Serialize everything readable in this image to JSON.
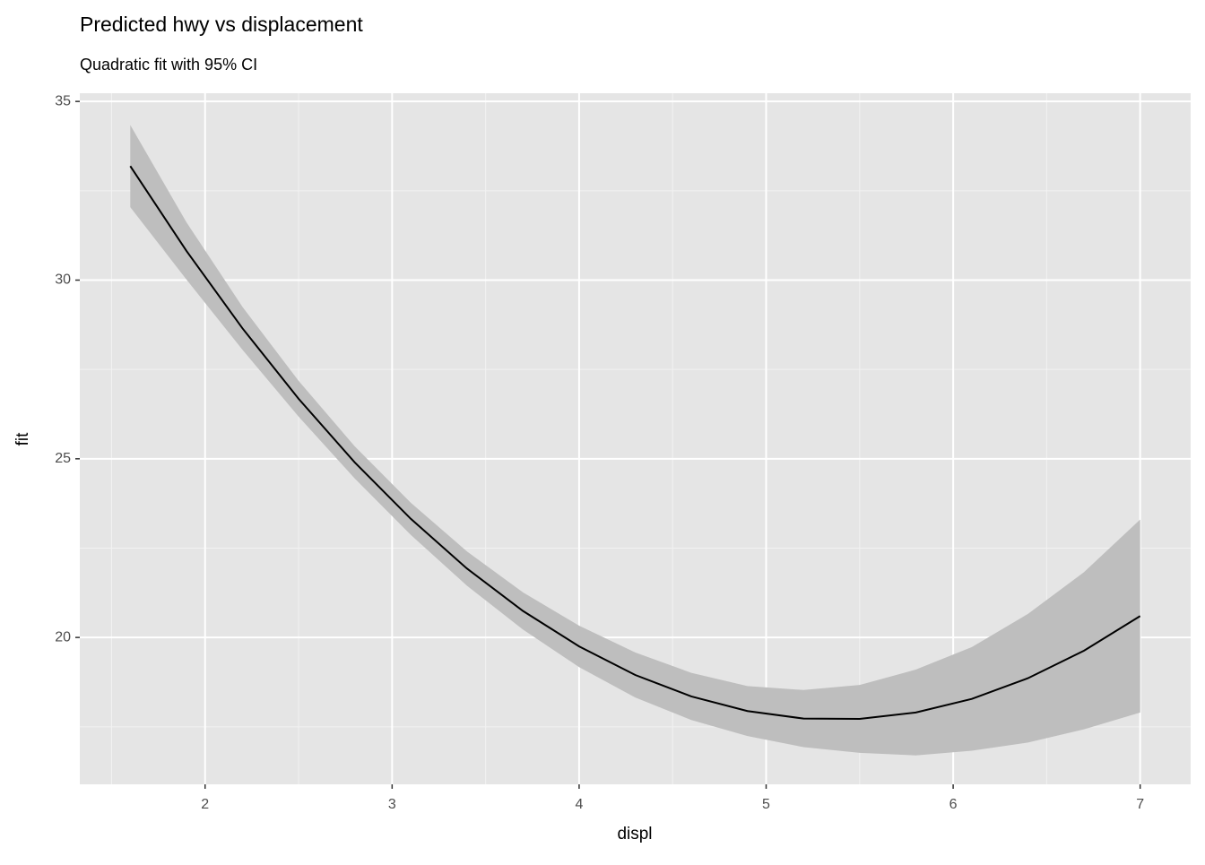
{
  "chart_data": {
    "type": "ribbon-line",
    "title": "Predicted hwy vs displacement",
    "subtitle": "Quadratic fit with 95% CI",
    "x_label": "displ",
    "y_label": "fit",
    "x": [
      1.6,
      1.9,
      2.2,
      2.5,
      2.8,
      3.1,
      3.4,
      3.7,
      4.0,
      4.3,
      4.6,
      4.9,
      5.2,
      5.5,
      5.8,
      6.1,
      6.4,
      6.7,
      7.0
    ],
    "series": [
      {
        "name": "fit",
        "color": "#000000",
        "values": [
          33.19,
          30.82,
          28.65,
          26.68,
          24.9,
          23.32,
          21.93,
          20.74,
          19.75,
          18.95,
          18.35,
          17.94,
          17.73,
          17.72,
          17.9,
          18.28,
          18.86,
          19.63,
          20.6
        ]
      },
      {
        "name": "lower",
        "color": "#bebebe",
        "values": [
          32.04,
          30.02,
          28.05,
          26.18,
          24.45,
          22.87,
          21.45,
          20.22,
          19.17,
          18.32,
          17.69,
          17.24,
          16.93,
          16.77,
          16.7,
          16.83,
          17.06,
          17.43,
          17.9
        ]
      },
      {
        "name": "upper",
        "color": "#bebebe",
        "values": [
          34.34,
          31.62,
          29.25,
          27.18,
          25.35,
          23.77,
          22.41,
          21.26,
          20.33,
          19.58,
          19.01,
          18.64,
          18.53,
          18.67,
          19.1,
          19.73,
          20.66,
          21.83,
          23.3
        ]
      }
    ],
    "xlim": [
      1.33,
      7.27
    ],
    "ylim": [
      15.89,
      35.23
    ],
    "xticks": [
      2,
      3,
      4,
      5,
      6,
      7
    ],
    "yticks": [
      20,
      25,
      30,
      35
    ],
    "x_minor_ticks": [
      1.5,
      2.5,
      3.5,
      4.5,
      5.5,
      6.5
    ],
    "y_minor_ticks": [
      17.5,
      22.5,
      27.5,
      32.5
    ],
    "grid": true
  }
}
